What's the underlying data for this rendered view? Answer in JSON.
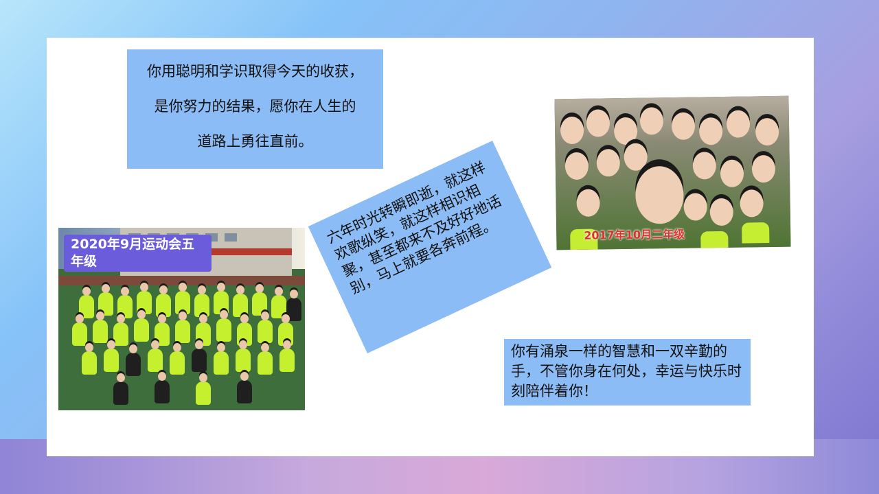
{
  "textboxes": {
    "tb1": {
      "lines": [
        "你用聪明和学识取得今天的收获，",
        "是你努力的结果，愿你在人生的",
        "道路上勇往直前。"
      ]
    },
    "tb2": {
      "text": "六年时光转瞬即逝，就这样欢歌纵笑，就这样相识相聚，甚至都来不及好好地话别，马上就要各奔前程。"
    },
    "tb3": {
      "text": "你有涌泉一样的智慧和一双辛勤的手，不管你身在何处，幸运与快乐时刻陪伴着你！"
    }
  },
  "photos": {
    "photo1": {
      "caption": "2020年9月运动会五年级"
    },
    "photo2": {
      "caption": "2017年10月二年级"
    }
  },
  "colors": {
    "textbox_bg": "#8cbcf5",
    "photo1_label_bg": "#6a5cdb",
    "photo2_label_text": "#e0322c"
  }
}
